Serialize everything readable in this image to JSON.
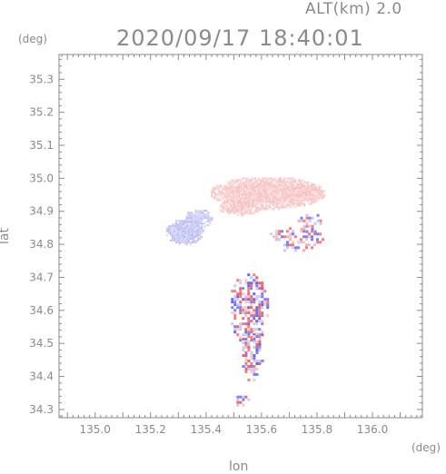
{
  "header": {
    "altitude_label": "ALT(km)  2.0",
    "timestamp": "2020/09/17 18:40:01"
  },
  "axes": {
    "x_label": "lon",
    "y_label": "lat",
    "x_unit": "(deg)",
    "y_unit": "(deg)",
    "x_ticks": [
      "135.0",
      "135.2",
      "135.4",
      "135.6",
      "135.8",
      "136.0"
    ],
    "y_ticks": [
      "35.3",
      "35.2",
      "35.1",
      "35.0",
      "34.9",
      "34.8",
      "34.7",
      "34.6",
      "34.5",
      "34.4",
      "34.3"
    ]
  },
  "colors": {
    "axis": "#8a8a8a",
    "positive": "#f08080",
    "positive_light": "#f7c9c9",
    "negative": "#8080f0",
    "negative_light": "#c9c9f7"
  },
  "chart_data": {
    "type": "heatmap",
    "x_range": [
      134.87,
      136.18
    ],
    "y_range": [
      34.275,
      35.375
    ],
    "regions": [
      {
        "name": "north-red-cluster",
        "sign": "positive",
        "center": [
          135.62,
          34.95
        ],
        "extent": [
          0.22,
          0.05
        ]
      },
      {
        "name": "west-blue-cluster",
        "sign": "negative",
        "center": [
          135.32,
          34.84
        ],
        "extent": [
          0.07,
          0.04
        ]
      },
      {
        "name": "east-mixed-cluster",
        "sign": "mixed",
        "center": [
          135.72,
          34.82
        ],
        "extent": [
          0.1,
          0.04
        ]
      },
      {
        "name": "south-mixed-cluster",
        "sign": "mixed",
        "center": [
          135.55,
          34.55
        ],
        "extent": [
          0.07,
          0.17
        ]
      }
    ]
  }
}
